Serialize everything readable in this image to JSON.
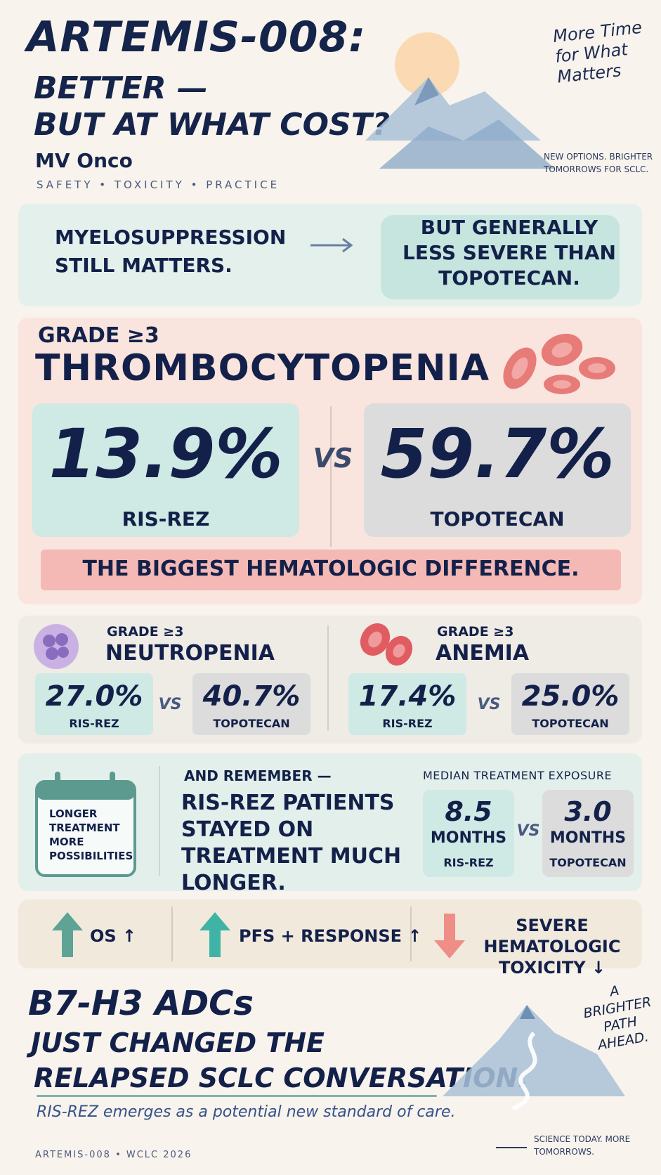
{
  "header": {
    "title_line1": "ARTEMIS-008:",
    "title_line2": "BETTER —",
    "title_line3": "BUT AT WHAT COST?",
    "author": "MV Onco",
    "tagline": "SAFETY • TOXICITY • PRACTICE",
    "quote": "More Time for What Matters",
    "note": "NEW OPTIONS. BRIGHTER TOMORROWS FOR SCLC."
  },
  "banner": {
    "left_text": "MYELOSUPPRESSION STILL MATTERS.",
    "right_text": "BUT GENERALLY LESS SEVERE THAN TOPOTECAN."
  },
  "thrombocytopenia": {
    "subtitle": "GRADE ≥3",
    "title": "THROMBOCYTOPENIA",
    "left_value": "13.9%",
    "left_label": "RIS-REZ",
    "vs": "VS",
    "right_value": "59.7%",
    "right_label": "TOPOTECAN",
    "strip": "THE BIGGEST HEMATOLOGIC DIFFERENCE."
  },
  "neutropenia": {
    "subtitle": "GRADE ≥3",
    "title": "NEUTROPENIA",
    "left_value": "27.0%",
    "left_label": "RIS-REZ",
    "vs": "VS",
    "right_value": "40.7%",
    "right_label": "TOPOTECAN"
  },
  "anemia": {
    "subtitle": "GRADE ≥3",
    "title": "ANEMIA",
    "left_value": "17.4%",
    "left_label": "RIS-REZ",
    "vs": "VS",
    "right_value": "25.0%",
    "right_label": "TOPOTECAN"
  },
  "exposure": {
    "calendar_text": "LONGER TREATMENT MORE POSSIBILITIES",
    "remember": "AND REMEMBER —",
    "statement": "RIS-REZ PATIENTS STAYED ON TREATMENT MUCH LONGER.",
    "title": "MEDIAN TREATMENT EXPOSURE",
    "left_value": "8.5",
    "left_unit": "MONTHS",
    "left_label": "RIS-REZ",
    "vs": "VS",
    "right_value": "3.0",
    "right_unit": "MONTHS",
    "right_label": "TOPOTECAN"
  },
  "outcomes": {
    "os": "OS ↑",
    "pfs": "PFS + RESPONSE ↑",
    "tox": "SEVERE HEMATOLOGIC TOXICITY ↓",
    "up_color": "#5fa395",
    "down_color": "#ef8d87"
  },
  "footer": {
    "line1": "B7-H3 ADCs",
    "line2": "JUST CHANGED THE",
    "line3": "RELAPSED SCLC CONVERSATION.",
    "sub": "RIS-REZ emerges as a potential new standard of care.",
    "tag": "ARTEMIS-008 • WCLC 2026",
    "quote": "A BRIGHTER PATH AHEAD.",
    "note": "SCIENCE TODAY. MORE TOMORROWS."
  }
}
